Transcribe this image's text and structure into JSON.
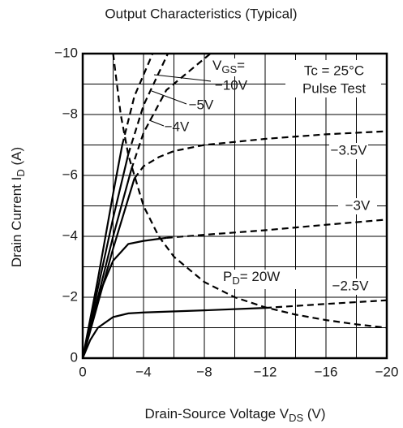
{
  "chart_data": {
    "type": "line",
    "title": "Output Characteristics  (Typical)",
    "x_label": {
      "main": "Drain-Source Voltage  V",
      "sub": "DS",
      "rest": " (V)"
    },
    "y_label": {
      "main": "Drain Current  I",
      "sub": "D",
      "rest": " (A)"
    },
    "xlim": [
      0,
      -20
    ],
    "ylim": [
      0,
      -10
    ],
    "xticks": [
      0,
      {
        "value": -4,
        "label": "−4"
      },
      {
        "value": -8,
        "label": "−8"
      },
      {
        "value": -12,
        "label": "−12"
      },
      {
        "value": -16,
        "label": "−16"
      },
      {
        "value": -20,
        "label": "−20"
      }
    ],
    "yticks": [
      0,
      {
        "value": -2,
        "label": "−2"
      },
      {
        "value": -4,
        "label": "−4"
      },
      {
        "value": -6,
        "label": "−6"
      },
      {
        "value": -8,
        "label": "−8"
      },
      {
        "value": -10,
        "label": "−10"
      }
    ],
    "xgrid": [
      -2,
      -6,
      -10,
      -14,
      -18
    ],
    "ygrid": [
      -1,
      -3,
      -5,
      -7,
      -9
    ],
    "grid": true,
    "vgs_label": {
      "main": "V",
      "sub": "GS",
      "rest": "="
    },
    "annotations": [
      "Tc = 25°C",
      "Pulse Test"
    ],
    "pd_label": {
      "main": "P",
      "sub": "D",
      "rest": "= 20W"
    },
    "color": "#000000",
    "series": [
      {
        "name": "−10V",
        "solid": {
          "x": [
            0,
            -1,
            -2,
            -2.6
          ],
          "values": [
            0,
            -2.6,
            -5.4,
            -7.0
          ]
        },
        "dashed": {
          "x": [
            -2.6,
            -3.4,
            -4.6
          ],
          "values": [
            -7.0,
            -8.6,
            -10
          ]
        }
      },
      {
        "name": "−5V",
        "solid": {
          "x": [
            0,
            -1,
            -2,
            -3
          ],
          "values": [
            0,
            -2.3,
            -4.6,
            -6.7
          ]
        },
        "dashed": {
          "x": [
            -3,
            -4,
            -5.6
          ],
          "values": [
            -6.7,
            -8.3,
            -10
          ]
        }
      },
      {
        "name": "−4V",
        "solid": {
          "x": [
            0,
            -1,
            -2,
            -3.2
          ],
          "values": [
            0,
            -2.0,
            -4.0,
            -6.2
          ]
        },
        "dashed": {
          "x": [
            -3.2,
            -4,
            -5.5,
            -8.4
          ],
          "values": [
            -6.2,
            -7.4,
            -8.8,
            -10
          ]
        }
      },
      {
        "name": "−3.5V",
        "solid": {
          "x": [
            0,
            -1,
            -2,
            -3.4
          ],
          "values": [
            0,
            -1.8,
            -3.6,
            -5.9
          ]
        },
        "dashed": {
          "x": [
            -3.4,
            -4,
            -5,
            -6,
            -8,
            -12,
            -16,
            -20
          ],
          "values": [
            -5.9,
            -6.3,
            -6.6,
            -6.8,
            -7.0,
            -7.2,
            -7.35,
            -7.45
          ]
        }
      },
      {
        "name": "−3V",
        "solid": {
          "x": [
            0,
            -1,
            -2,
            -3,
            -4,
            -5.5
          ],
          "values": [
            0,
            -2.0,
            -3.2,
            -3.75,
            -3.85,
            -3.95
          ]
        },
        "dashed": {
          "x": [
            -5.5,
            -8,
            -12,
            -16,
            -20
          ],
          "values": [
            -3.95,
            -4.05,
            -4.2,
            -4.38,
            -4.55
          ]
        }
      },
      {
        "name": "−2.5V",
        "solid": {
          "x": [
            0,
            -0.5,
            -1,
            -2,
            -3,
            -4,
            -8,
            -12
          ],
          "values": [
            0,
            -0.6,
            -1.0,
            -1.35,
            -1.47,
            -1.5,
            -1.57,
            -1.65
          ]
        },
        "dashed": {
          "x": [
            -12,
            -16,
            -20
          ],
          "values": [
            -1.65,
            -1.78,
            -1.9
          ]
        }
      }
    ],
    "pd_curve": {
      "x": [
        -2,
        -2.5,
        -3,
        -4,
        -5,
        -6,
        -8,
        -10,
        -12,
        -14,
        -16,
        -18,
        -20
      ],
      "values": [
        -10,
        -8,
        -6.67,
        -5,
        -4,
        -3.33,
        -2.5,
        -2,
        -1.67,
        -1.43,
        -1.25,
        -1.11,
        -1
      ]
    }
  }
}
